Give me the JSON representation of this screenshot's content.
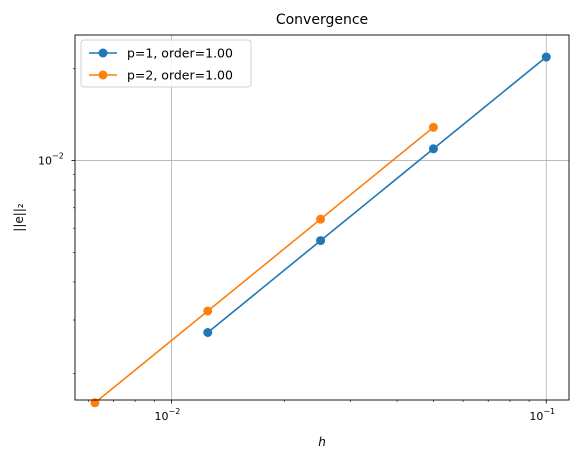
{
  "chart_data": {
    "type": "line",
    "title": "Convergence",
    "xlabel": "h",
    "ylabel": "||e||₂",
    "xscale": "log",
    "yscale": "log",
    "xlim": [
      0.00553,
      0.115
    ],
    "ylim": [
      0.00164,
      0.0258
    ],
    "grid": true,
    "legend_position": "top-left",
    "x_ticks": [
      {
        "value": 0.01,
        "base": "10",
        "exp": "−2"
      },
      {
        "value": 0.1,
        "base": "10",
        "exp": "−1"
      }
    ],
    "y_ticks": [
      {
        "value": 0.01,
        "base": "10",
        "exp": "−2"
      }
    ],
    "series": [
      {
        "name": "p=1, order=1.00",
        "color": "#1f77b4",
        "x": [
          0.1,
          0.05,
          0.025,
          0.0125
        ],
        "y": [
          0.02185,
          0.01093,
          0.005465,
          0.00273
        ]
      },
      {
        "name": "p=2, order=1.00",
        "color": "#ff7f0e",
        "x": [
          0.05,
          0.025,
          0.0125,
          0.00625
        ],
        "y": [
          0.01285,
          0.006425,
          0.003212,
          0.001606
        ]
      }
    ]
  }
}
